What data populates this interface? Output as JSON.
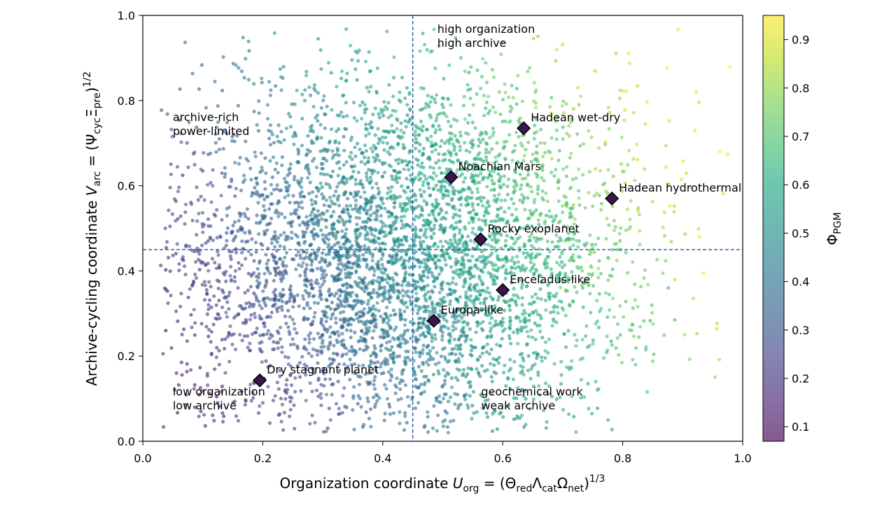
{
  "chart_data": {
    "type": "scatter",
    "xlabel": "Organization coordinate U_org = (Θ_red Λ_cat Ω_net)^1/3",
    "ylabel": "Archive-cycling coordinate V_arc = (Ψ_cyc Ξ_pre)^1/2",
    "xlabel_parts": {
      "prefix": "Organization coordinate ",
      "var": "U",
      "var_sub": "org",
      "eq": " = (Θ",
      "s1": "red",
      "m1": "Λ",
      "s2": "cat",
      "m2": "Ω",
      "s3": "net",
      "close": ")",
      "exp": "1/3"
    },
    "ylabel_parts": {
      "prefix": "Archive-cycling coordinate ",
      "var": "V",
      "var_sub": "arc",
      "eq": " = (Ψ",
      "s1": "cyc",
      "m1": "Ξ",
      "s2": "pre",
      "close": ")",
      "exp": "1/2"
    },
    "xlim": [
      0.0,
      1.0
    ],
    "ylim": [
      0.0,
      1.0
    ],
    "xticks": [
      "0.0",
      "0.2",
      "0.4",
      "0.6",
      "0.8",
      "1.0"
    ],
    "yticks": [
      "0.0",
      "0.2",
      "0.4",
      "0.6",
      "0.8",
      "1.0"
    ],
    "grid": false,
    "threshold_lines": {
      "x": 0.45,
      "y": 0.45,
      "color": "#1f5aa6",
      "style": "dashed"
    },
    "colorbar": {
      "label_main": "Φ",
      "label_sub": "PGM",
      "range": [
        0.07,
        0.95
      ],
      "ticks": [
        "0.1",
        "0.2",
        "0.3",
        "0.4",
        "0.5",
        "0.6",
        "0.7",
        "0.8",
        "0.9"
      ],
      "colormap": "viridis"
    },
    "scatter_cloud": {
      "description_count_approx": 5000,
      "color_by": "Φ_PGM",
      "alpha": 0.6,
      "marker": "circle"
    },
    "highlighted_points": [
      {
        "label": "Dry stagnant planet",
        "x": 0.195,
        "y": 0.143
      },
      {
        "label": "Europa-like",
        "x": 0.485,
        "y": 0.283
      },
      {
        "label": "Enceladus-like",
        "x": 0.6,
        "y": 0.355
      },
      {
        "label": "Rocky exoplanet",
        "x": 0.563,
        "y": 0.474
      },
      {
        "label": "Noachian Mars",
        "x": 0.514,
        "y": 0.62
      },
      {
        "label": "Hadean hydrothermal",
        "x": 0.782,
        "y": 0.57
      },
      {
        "label": "Hadean wet-dry",
        "x": 0.635,
        "y": 0.735
      }
    ],
    "highlight_marker": {
      "shape": "diamond",
      "fill": "#3b1450",
      "edge": "#000000"
    },
    "region_labels": [
      {
        "lines": [
          "high organization",
          "high archive"
        ],
        "x": 0.491,
        "y": 0.967
      },
      {
        "lines": [
          "archive-rich",
          "power-limited"
        ],
        "x": 0.05,
        "y": 0.76
      },
      {
        "lines": [
          "low organization",
          "low archive"
        ],
        "x": 0.05,
        "y": 0.116
      },
      {
        "lines": [
          "geochemical work",
          "weak archive"
        ],
        "x": 0.564,
        "y": 0.116
      }
    ]
  }
}
